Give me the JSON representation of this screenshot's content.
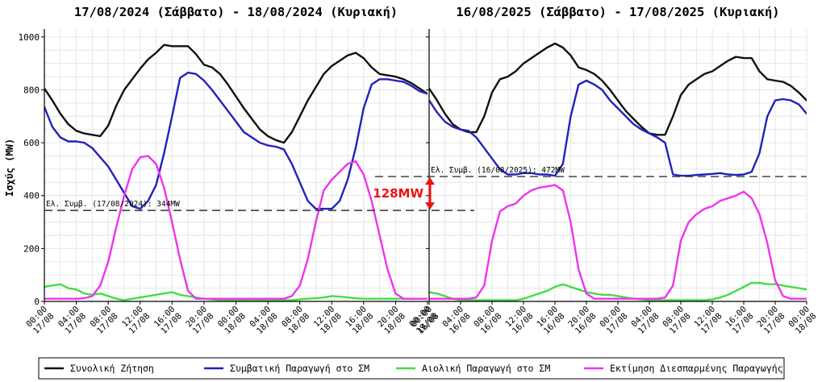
{
  "ylabel": "Ισχύς (MW)",
  "gap_label": "128MW",
  "colors": {
    "demand": "#111111",
    "conventional": "#2222bb",
    "wind": "#44dd44",
    "distributed": "#ee33ee",
    "gap_arrow": "#ee1111",
    "min_line": "#333333"
  },
  "legend": [
    {
      "key": "demand",
      "label": "Συνολική Ζήτηση"
    },
    {
      "key": "conventional",
      "label": "Συμβατική Παραγωγή στο ΣΜ"
    },
    {
      "key": "wind",
      "label": "Αιολική Παραγωγή στο ΣΜ"
    },
    {
      "key": "distributed",
      "label": "Εκτίμηση Διεσπαρμένης Παραγωγής"
    }
  ],
  "chart_data": [
    {
      "type": "line",
      "title": "17/08/2024 (Σάββατο) - 18/08/2024 (Κυριακή)",
      "ylabel": "Ισχύς (MW)",
      "ylim": [
        0,
        1030
      ],
      "yticks": [
        0,
        200,
        400,
        600,
        800,
        1000
      ],
      "xlim": [
        0,
        48
      ],
      "grid": true,
      "x_tick_labels": [
        [
          "00:00",
          "17/08"
        ],
        [
          "04:00",
          "17/08"
        ],
        [
          "08:00",
          "17/08"
        ],
        [
          "12:00",
          "17/08"
        ],
        [
          "16:00",
          "17/08"
        ],
        [
          "20:00",
          "17/08"
        ],
        [
          "00:00",
          "18/08"
        ],
        [
          "04:00",
          "18/08"
        ],
        [
          "08:00",
          "18/08"
        ],
        [
          "12:00",
          "18/08"
        ],
        [
          "16:00",
          "18/08"
        ],
        [
          "20:00",
          "18/08"
        ],
        [
          "00:00",
          "19/08"
        ]
      ],
      "x": [
        0,
        1,
        2,
        3,
        4,
        5,
        6,
        7,
        8,
        9,
        10,
        11,
        12,
        13,
        14,
        15,
        16,
        17,
        18,
        19,
        20,
        21,
        22,
        23,
        24,
        25,
        26,
        27,
        28,
        29,
        30,
        31,
        32,
        33,
        34,
        35,
        36,
        37,
        38,
        39,
        40,
        41,
        42,
        43,
        44,
        45,
        46,
        47,
        48
      ],
      "series": [
        {
          "key": "demand",
          "name": "Συνολική Ζήτηση",
          "values": [
            805,
            760,
            710,
            670,
            645,
            635,
            630,
            625,
            665,
            740,
            800,
            840,
            880,
            915,
            940,
            970,
            965,
            965,
            965,
            935,
            895,
            885,
            860,
            820,
            775,
            730,
            690,
            650,
            625,
            610,
            600,
            640,
            700,
            760,
            810,
            860,
            890,
            910,
            930,
            940,
            920,
            885,
            860,
            855,
            850,
            840,
            825,
            805,
            785
          ]
        },
        {
          "key": "conventional",
          "name": "Συμβατική Παραγωγή στο ΣΜ",
          "values": [
            735,
            660,
            620,
            605,
            605,
            600,
            580,
            545,
            510,
            460,
            410,
            360,
            350,
            380,
            440,
            560,
            700,
            845,
            865,
            860,
            835,
            800,
            760,
            720,
            680,
            640,
            620,
            600,
            590,
            585,
            575,
            520,
            450,
            380,
            350,
            350,
            350,
            380,
            460,
            580,
            730,
            820,
            840,
            840,
            835,
            830,
            815,
            795,
            785
          ]
        },
        {
          "key": "wind",
          "name": "Αιολική Παραγωγή στο ΣΜ",
          "values": [
            55,
            60,
            65,
            50,
            45,
            30,
            25,
            30,
            20,
            10,
            5,
            10,
            15,
            20,
            25,
            30,
            35,
            25,
            20,
            15,
            10,
            8,
            5,
            5,
            5,
            5,
            5,
            5,
            5,
            5,
            5,
            5,
            8,
            10,
            12,
            15,
            20,
            18,
            15,
            12,
            10,
            10,
            10,
            10,
            10,
            10,
            10,
            10,
            10
          ]
        },
        {
          "key": "distributed",
          "name": "Εκτίμηση Διεσπαρμένης Παραγωγής",
          "values": [
            10,
            10,
            10,
            10,
            10,
            12,
            20,
            60,
            150,
            280,
            400,
            500,
            545,
            550,
            520,
            430,
            300,
            160,
            40,
            10,
            10,
            10,
            10,
            10,
            10,
            10,
            10,
            10,
            10,
            10,
            10,
            20,
            60,
            160,
            300,
            420,
            460,
            490,
            520,
            530,
            480,
            380,
            250,
            120,
            30,
            10,
            10,
            10,
            10
          ]
        }
      ],
      "annotations": [
        {
          "type": "hline",
          "y": 344,
          "x_from": 0,
          "x_to": 48,
          "label": "Ελ. Συμβ. (17/08/2024): 344MW"
        }
      ]
    },
    {
      "type": "line",
      "title": "16/08/2025 (Σάββατο) - 17/08/2025 (Κυριακή)",
      "ylim": [
        0,
        1030
      ],
      "yticks": [
        0,
        200,
        400,
        600,
        800,
        1000
      ],
      "xlim": [
        0,
        48
      ],
      "grid": true,
      "x_tick_labels": [
        [
          "00:00",
          "16/08"
        ],
        [
          "04:00",
          "16/08"
        ],
        [
          "08:00",
          "16/08"
        ],
        [
          "12:00",
          "16/08"
        ],
        [
          "16:00",
          "16/08"
        ],
        [
          "20:00",
          "16/08"
        ],
        [
          "00:00",
          "17/08"
        ],
        [
          "04:00",
          "17/08"
        ],
        [
          "08:00",
          "17/08"
        ],
        [
          "12:00",
          "17/08"
        ],
        [
          "16:00",
          "17/08"
        ],
        [
          "20:00",
          "17/08"
        ],
        [
          "00:00",
          "18/08"
        ]
      ],
      "x": [
        0,
        1,
        2,
        3,
        4,
        5,
        6,
        7,
        8,
        9,
        10,
        11,
        12,
        13,
        14,
        15,
        16,
        17,
        18,
        19,
        20,
        21,
        22,
        23,
        24,
        25,
        26,
        27,
        28,
        29,
        30,
        31,
        32,
        33,
        34,
        35,
        36,
        37,
        38,
        39,
        40,
        41,
        42,
        43,
        44,
        45,
        46,
        47,
        48
      ],
      "series": [
        {
          "key": "demand",
          "name": "Συνολική Ζήτηση",
          "values": [
            805,
            760,
            710,
            670,
            650,
            640,
            640,
            700,
            790,
            840,
            850,
            870,
            900,
            920,
            940,
            960,
            975,
            960,
            930,
            885,
            875,
            860,
            835,
            800,
            760,
            720,
            690,
            660,
            635,
            630,
            630,
            700,
            780,
            820,
            840,
            860,
            870,
            890,
            910,
            925,
            920,
            920,
            870,
            840,
            835,
            830,
            815,
            790,
            760
          ]
        },
        {
          "key": "conventional",
          "name": "Συμβατική Παραγωγή στο ΣΜ",
          "values": [
            760,
            715,
            680,
            660,
            650,
            645,
            620,
            580,
            540,
            500,
            480,
            480,
            485,
            485,
            480,
            480,
            475,
            520,
            700,
            820,
            835,
            820,
            800,
            760,
            730,
            700,
            670,
            650,
            635,
            620,
            600,
            480,
            475,
            475,
            478,
            480,
            482,
            485,
            480,
            478,
            480,
            490,
            560,
            700,
            760,
            765,
            760,
            745,
            710
          ]
        },
        {
          "key": "wind",
          "name": "Αιολική Παραγωγή στο ΣΜ",
          "values": [
            35,
            30,
            20,
            10,
            5,
            5,
            5,
            5,
            5,
            5,
            5,
            5,
            10,
            20,
            30,
            40,
            55,
            65,
            55,
            45,
            35,
            30,
            25,
            25,
            20,
            15,
            10,
            8,
            5,
            5,
            5,
            5,
            5,
            5,
            5,
            5,
            8,
            15,
            25,
            40,
            55,
            70,
            70,
            65,
            65,
            60,
            55,
            50,
            45
          ]
        },
        {
          "key": "distributed",
          "name": "Εκτίμηση Διεσπαρμένης Παραγωγής",
          "values": [
            10,
            10,
            10,
            10,
            10,
            10,
            15,
            60,
            230,
            340,
            360,
            370,
            400,
            420,
            430,
            435,
            440,
            420,
            300,
            120,
            30,
            10,
            10,
            10,
            10,
            10,
            10,
            10,
            10,
            10,
            15,
            60,
            230,
            300,
            330,
            350,
            360,
            380,
            390,
            400,
            415,
            390,
            330,
            220,
            80,
            20,
            10,
            10,
            10
          ]
        }
      ],
      "annotations": [
        {
          "type": "hline",
          "y": 472,
          "x_from": -10,
          "x_to": 48,
          "label": "Ελ. Συμβ. (16/08/2025): 472MW"
        }
      ]
    }
  ]
}
